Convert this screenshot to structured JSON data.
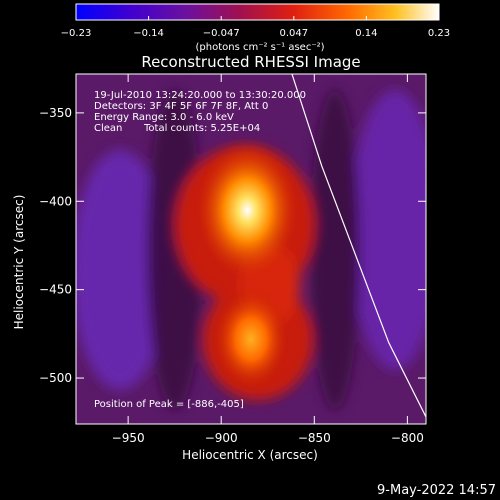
{
  "chart_data": {
    "type": "heatmap",
    "title": "Reconstructed RHESSI Image",
    "xlabel": "Heliocentric X (arcsec)",
    "ylabel": "Heliocentric Y (arcsec)",
    "xlim": [
      -978,
      -790
    ],
    "ylim": [
      -526,
      -328
    ],
    "x_ticks": [
      -950,
      -900,
      -850,
      -800
    ],
    "x_tick_labels": [
      "−950",
      "−900",
      "−850",
      "−800"
    ],
    "y_ticks": [
      -350,
      -400,
      -450,
      -500
    ],
    "y_tick_labels": [
      "−350",
      "−400",
      "−450",
      "−500"
    ],
    "colorbar": {
      "range": [
        -0.23,
        0.23
      ],
      "tick_labels": [
        "−0.23",
        "−0.14",
        "−0.047",
        "0.047",
        "0.14",
        "0.23"
      ],
      "units": "(photons cm⁻² s⁻¹ asec⁻²)",
      "colors": [
        "#0000ff",
        "#5a00b0",
        "#7a1080",
        "#d01010",
        "#ff5500",
        "#ffa000",
        "#ffff60",
        "#ffffff"
      ]
    },
    "annotations": {
      "time_range": "19-Jul-2010 13:24:20.000 to 13:30:20.000",
      "detectors": "Detectors: 3F 4F 5F 6F 7F 8F, Att 0",
      "energy": "Energy Range: 3.0 - 6.0 keV",
      "method": "Clean",
      "counts": "Total counts: 5.25E+04",
      "peak": "Position of Peak = [-886,-405]"
    },
    "sources": [
      {
        "x": -886,
        "y": -405,
        "peak": 0.23
      },
      {
        "x": -884,
        "y": -478,
        "peak": 0.16
      }
    ],
    "limb": [
      [
        -862,
        -328
      ],
      [
        -846,
        -380
      ],
      [
        -828,
        -430
      ],
      [
        -810,
        -480
      ],
      [
        -790,
        -522
      ]
    ]
  },
  "footer": {
    "date": "9-May-2022 14:57"
  }
}
